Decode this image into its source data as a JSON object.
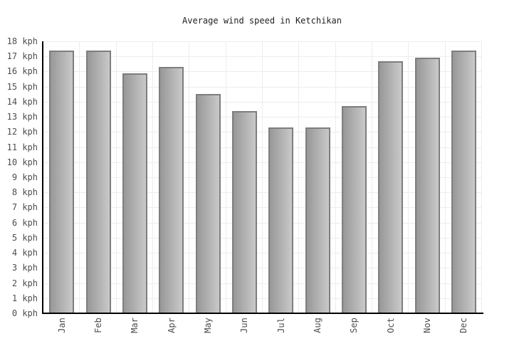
{
  "chart_data": {
    "type": "bar",
    "title": "Average wind speed in Ketchikan",
    "categories": [
      "Jan",
      "Feb",
      "Mar",
      "Apr",
      "May",
      "Jun",
      "Jul",
      "Aug",
      "Sep",
      "Oct",
      "Nov",
      "Dec"
    ],
    "values": [
      17.4,
      17.4,
      15.9,
      16.3,
      14.5,
      13.4,
      12.3,
      12.3,
      13.7,
      16.7,
      16.9,
      17.4
    ],
    "unit": "kph",
    "xlabel": "",
    "ylabel": "",
    "ylim": [
      0,
      18
    ],
    "ytick_step": 1,
    "ytick_labels": [
      "0 kph",
      "1 kph",
      "2 kph",
      "3 kph",
      "4 kph",
      "5 kph",
      "6 kph",
      "7 kph",
      "8 kph",
      "9 kph",
      "10 kph",
      "11 kph",
      "12 kph",
      "13 kph",
      "14 kph",
      "15 kph",
      "16 kph",
      "17 kph",
      "18 kph"
    ],
    "grid": true,
    "legend": "none",
    "x_tick_label_rotation_deg": -90,
    "colors": {
      "background": "#ffffff",
      "title": "#222222",
      "tick_label": "#4d4d4d",
      "axis": "#000000",
      "gridline": "#ededed",
      "bar_gradient_left": "#989898",
      "bar_gradient_right": "#c9c9c9",
      "bar_border": "#7e7e7e"
    }
  }
}
